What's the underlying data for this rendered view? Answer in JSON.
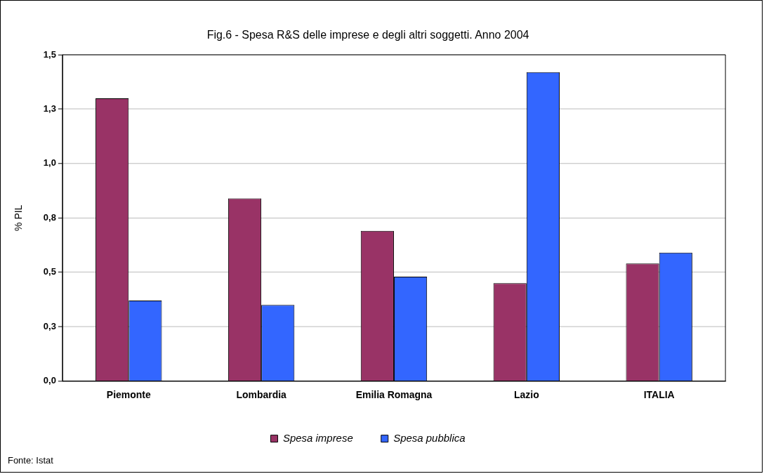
{
  "chart_data": {
    "type": "bar",
    "title": "Fig.6 - Spesa R&S delle imprese e degli altri soggetti. Anno 2004",
    "ylabel": "% PIL",
    "categories": [
      "Piemonte",
      "Lombardia",
      "Emilia Romagna",
      "Lazio",
      "ITALIA"
    ],
    "series": [
      {
        "name": "Spesa imprese",
        "color": "#993366",
        "values": [
          1.3,
          0.84,
          0.69,
          0.45,
          0.54
        ]
      },
      {
        "name": "Spesa pubblica",
        "color": "#3366ff",
        "values": [
          0.37,
          0.35,
          0.48,
          1.42,
          0.59
        ]
      }
    ],
    "ylim": [
      0,
      1.5
    ],
    "yticks": [
      {
        "value": 0,
        "label": "0,0"
      },
      {
        "value": 0.25,
        "label": "0,3"
      },
      {
        "value": 0.5,
        "label": "0,5"
      },
      {
        "value": 0.75,
        "label": "0,8"
      },
      {
        "value": 1.0,
        "label": "1,0"
      },
      {
        "value": 1.25,
        "label": "1,3"
      },
      {
        "value": 1.5,
        "label": "1,5"
      }
    ],
    "grid": "y",
    "legend": "bottom",
    "annotations": [
      "Fonte: Istat"
    ]
  }
}
